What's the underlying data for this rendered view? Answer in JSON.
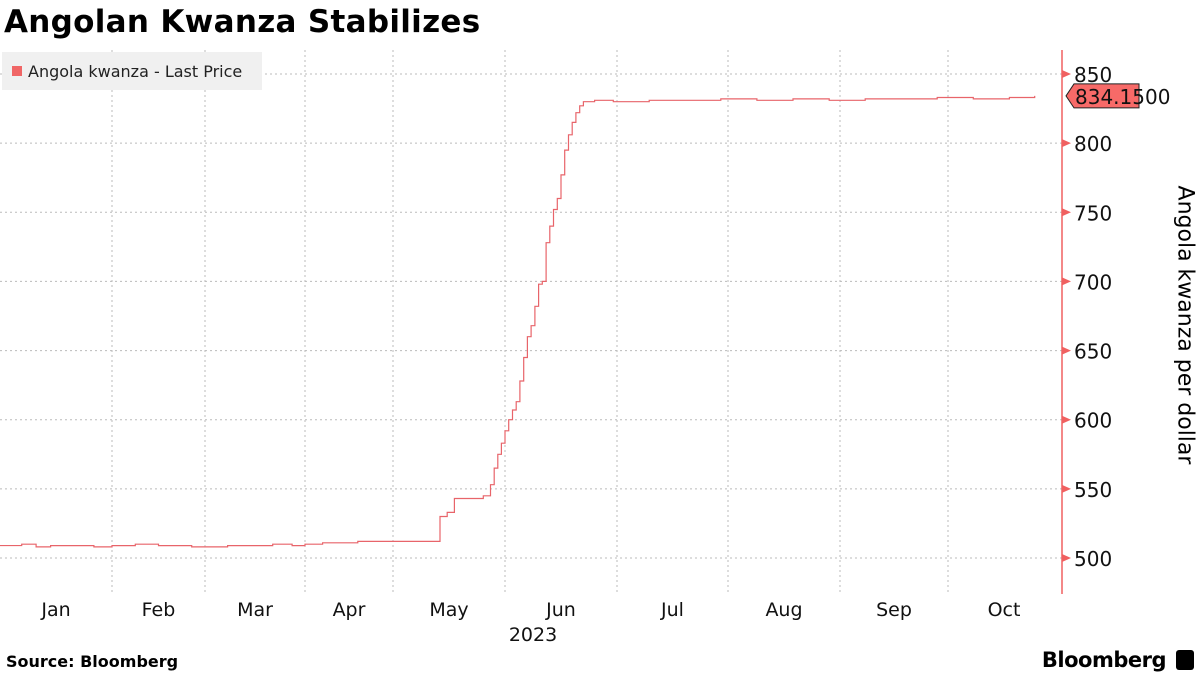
{
  "title": "Angolan Kwanza Stabilizes",
  "source": "Source: Bloomberg",
  "logo": "Bloomberg",
  "colors": {
    "line": "#e8646a",
    "axis": "#f06060",
    "label_bg": "#f76a68"
  },
  "chart_data": {
    "type": "line",
    "title": "Angolan Kwanza Stabilizes",
    "legend": [
      "Angola kwanza - Last Price"
    ],
    "legend_position": "top-left",
    "ylabel": "Angola kwanza per dollar",
    "xlabel": "2023",
    "ylim": [
      475,
      862
    ],
    "yticks": [
      500,
      550,
      600,
      650,
      700,
      750,
      800,
      850
    ],
    "xticks": [
      "Jan",
      "Feb",
      "Mar",
      "Apr",
      "May",
      "Jun",
      "Jul",
      "Aug",
      "Sep",
      "Oct"
    ],
    "x_year": "2023",
    "grid": true,
    "last_value_label": "834.1500",
    "x_unit": "day of year 2023",
    "series": [
      {
        "name": "Angola kwanza - Last Price",
        "points": [
          [
            0,
            509
          ],
          [
            6,
            510
          ],
          [
            10,
            508
          ],
          [
            14,
            509
          ],
          [
            20,
            509
          ],
          [
            26,
            508
          ],
          [
            31,
            509
          ],
          [
            38,
            510
          ],
          [
            45,
            509
          ],
          [
            52,
            509
          ],
          [
            55,
            508
          ],
          [
            59,
            508
          ],
          [
            66,
            509
          ],
          [
            72,
            509
          ],
          [
            80,
            510
          ],
          [
            86,
            509
          ],
          [
            90,
            510
          ],
          [
            96,
            511
          ],
          [
            102,
            511
          ],
          [
            108,
            512
          ],
          [
            115,
            512
          ],
          [
            124,
            512
          ],
          [
            132,
            512
          ],
          [
            133,
            530
          ],
          [
            135,
            533
          ],
          [
            137,
            543
          ],
          [
            141,
            543
          ],
          [
            145,
            545
          ],
          [
            147,
            553
          ],
          [
            148,
            565
          ],
          [
            149,
            575
          ],
          [
            150,
            583
          ],
          [
            151,
            592
          ],
          [
            152,
            600
          ],
          [
            153,
            607
          ],
          [
            154,
            613
          ],
          [
            155,
            628
          ],
          [
            156,
            645
          ],
          [
            157,
            660
          ],
          [
            158,
            668
          ],
          [
            159,
            682
          ],
          [
            160,
            698
          ],
          [
            161,
            700
          ],
          [
            162,
            728
          ],
          [
            163,
            740
          ],
          [
            164,
            752
          ],
          [
            165,
            760
          ],
          [
            166,
            777
          ],
          [
            167,
            795
          ],
          [
            168,
            806
          ],
          [
            169,
            815
          ],
          [
            170,
            822
          ],
          [
            171,
            827
          ],
          [
            172,
            830
          ],
          [
            175,
            831
          ],
          [
            180,
            830
          ],
          [
            190,
            831
          ],
          [
            200,
            831
          ],
          [
            210,
            832
          ],
          [
            220,
            831
          ],
          [
            230,
            832
          ],
          [
            240,
            831
          ],
          [
            250,
            832
          ],
          [
            260,
            832
          ],
          [
            270,
            833
          ],
          [
            280,
            832
          ],
          [
            290,
            833
          ],
          [
            297,
            834.15
          ]
        ]
      }
    ]
  }
}
